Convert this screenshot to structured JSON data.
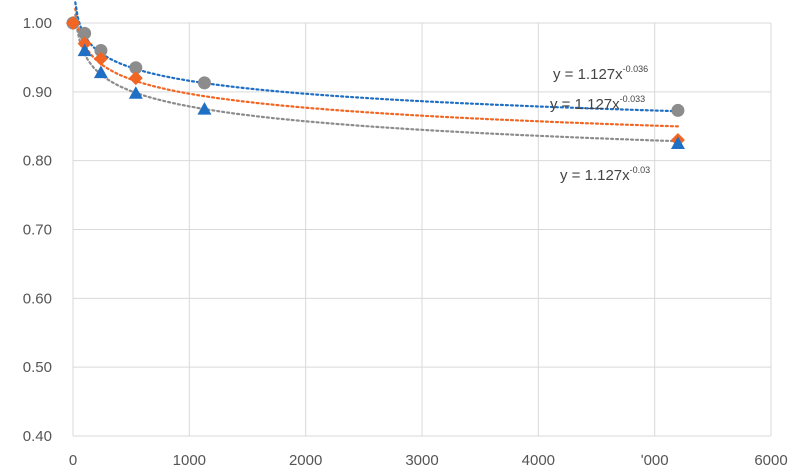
{
  "chart_data": {
    "type": "scatter",
    "title": "",
    "xlabel": "",
    "ylabel": "",
    "xlim": [
      0,
      6000
    ],
    "ylim": [
      0.4,
      1.0
    ],
    "grid": true,
    "x_ticks": [
      "0",
      "1000",
      "2000",
      "3000",
      "4000",
      "ʹ000",
      "6000"
    ],
    "y_ticks": [
      "0.40",
      "0.50",
      "0.60",
      "0.70",
      "0.80",
      "0.90",
      "1.00"
    ],
    "series": [
      {
        "color": "#8c8c8c",
        "marker": "circle",
        "points": [
          [
            0,
            1.0
          ],
          [
            100,
            0.985
          ],
          [
            240,
            0.96
          ],
          [
            540,
            0.935
          ],
          [
            1130,
            0.913
          ],
          [
            5200,
            0.873
          ]
        ],
        "trendline": {
          "a": 1.127,
          "b": -0.036,
          "label": "y = 1.127x",
          "exponent": "-0.036"
        }
      },
      {
        "color": "#f26522",
        "marker": "diamond",
        "points": [
          [
            0,
            1.0
          ],
          [
            100,
            0.97
          ],
          [
            240,
            0.948
          ],
          [
            540,
            0.92
          ],
          [
            5200,
            0.83
          ]
        ],
        "trendline": {
          "a": 1.127,
          "b": -0.033,
          "label": "y = 1.127x",
          "exponent": "-0.033"
        }
      },
      {
        "color": "#1f6fc5",
        "marker": "triangle",
        "points": [
          [
            100,
            0.96
          ],
          [
            240,
            0.928
          ],
          [
            540,
            0.898
          ],
          [
            1130,
            0.875
          ],
          [
            5200,
            0.825
          ]
        ],
        "trendline": {
          "a": 1.127,
          "b": -0.03,
          "label": "y = 1.127x",
          "exponent": "-0.03"
        }
      }
    ]
  }
}
